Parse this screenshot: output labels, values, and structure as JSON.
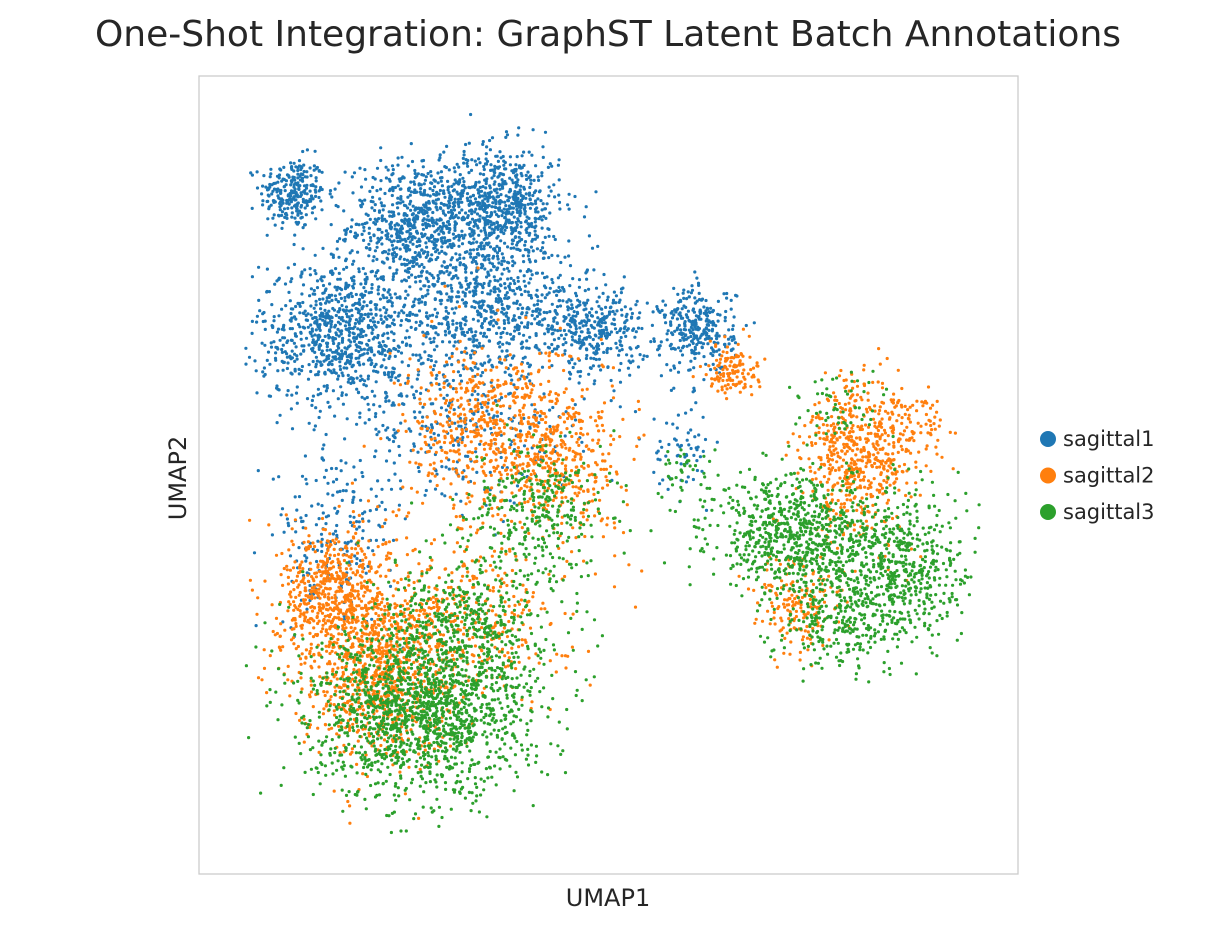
{
  "chart_data": {
    "type": "scatter",
    "title": "One-Shot Integration: GraphST Latent Batch Annotations",
    "xlabel": "UMAP1",
    "ylabel": "UMAP2",
    "xlim": [
      0,
      10
    ],
    "ylim": [
      0,
      10
    ],
    "ticks_shown": false,
    "grid": false,
    "legend_position": "right",
    "series": [
      {
        "name": "sagittal1",
        "color": "#1f77b4",
        "clusters": [
          {
            "cx": 0.75,
            "cy": 8.9,
            "sx": 0.22,
            "sy": 0.25,
            "n": 260
          },
          {
            "cx": 2.4,
            "cy": 8.45,
            "sx": 0.45,
            "sy": 0.45,
            "n": 700
          },
          {
            "cx": 3.55,
            "cy": 8.75,
            "sx": 0.4,
            "sy": 0.4,
            "n": 650
          },
          {
            "cx": 1.4,
            "cy": 6.95,
            "sx": 0.55,
            "sy": 0.5,
            "n": 850
          },
          {
            "cx": 3.4,
            "cy": 7.3,
            "sx": 0.7,
            "sy": 0.45,
            "n": 700
          },
          {
            "cx": 4.8,
            "cy": 7.0,
            "sx": 0.35,
            "sy": 0.3,
            "n": 320
          },
          {
            "cx": 6.2,
            "cy": 7.0,
            "sx": 0.25,
            "sy": 0.3,
            "n": 300
          },
          {
            "cx": 3.0,
            "cy": 5.6,
            "sx": 0.8,
            "sy": 0.5,
            "n": 300
          },
          {
            "cx": 1.3,
            "cy": 4.1,
            "sx": 0.4,
            "sy": 0.6,
            "n": 200
          },
          {
            "cx": 6.0,
            "cy": 5.4,
            "sx": 0.2,
            "sy": 0.3,
            "n": 60
          }
        ]
      },
      {
        "name": "sagittal2",
        "color": "#ff7f0e",
        "clusters": [
          {
            "cx": 1.3,
            "cy": 3.4,
            "sx": 0.35,
            "sy": 0.45,
            "n": 550
          },
          {
            "cx": 1.9,
            "cy": 2.3,
            "sx": 0.55,
            "sy": 0.6,
            "n": 900
          },
          {
            "cx": 3.5,
            "cy": 5.6,
            "sx": 0.6,
            "sy": 0.6,
            "n": 650
          },
          {
            "cx": 4.5,
            "cy": 5.1,
            "sx": 0.35,
            "sy": 0.5,
            "n": 250
          },
          {
            "cx": 3.1,
            "cy": 3.1,
            "sx": 0.7,
            "sy": 0.6,
            "n": 350
          },
          {
            "cx": 6.65,
            "cy": 6.45,
            "sx": 0.18,
            "sy": 0.18,
            "n": 130
          },
          {
            "cx": 8.35,
            "cy": 5.25,
            "sx": 0.35,
            "sy": 0.55,
            "n": 520
          },
          {
            "cx": 7.55,
            "cy": 3.2,
            "sx": 0.3,
            "sy": 0.35,
            "n": 170
          },
          {
            "cx": 9.0,
            "cy": 5.6,
            "sx": 0.25,
            "sy": 0.3,
            "n": 120
          }
        ]
      },
      {
        "name": "sagittal3",
        "color": "#2ca02c",
        "clusters": [
          {
            "cx": 2.5,
            "cy": 1.75,
            "sx": 0.75,
            "sy": 0.6,
            "n": 1600
          },
          {
            "cx": 3.2,
            "cy": 3.0,
            "sx": 0.55,
            "sy": 0.55,
            "n": 400
          },
          {
            "cx": 4.1,
            "cy": 4.5,
            "sx": 0.45,
            "sy": 0.5,
            "n": 300
          },
          {
            "cx": 7.5,
            "cy": 4.2,
            "sx": 0.55,
            "sy": 0.4,
            "n": 700
          },
          {
            "cx": 8.9,
            "cy": 3.7,
            "sx": 0.5,
            "sy": 0.5,
            "n": 600
          },
          {
            "cx": 8.1,
            "cy": 3.0,
            "sx": 0.4,
            "sy": 0.35,
            "n": 250
          },
          {
            "cx": 6.0,
            "cy": 5.0,
            "sx": 0.2,
            "sy": 0.2,
            "n": 40
          },
          {
            "cx": 8.2,
            "cy": 5.9,
            "sx": 0.3,
            "sy": 0.3,
            "n": 60
          }
        ]
      }
    ]
  }
}
